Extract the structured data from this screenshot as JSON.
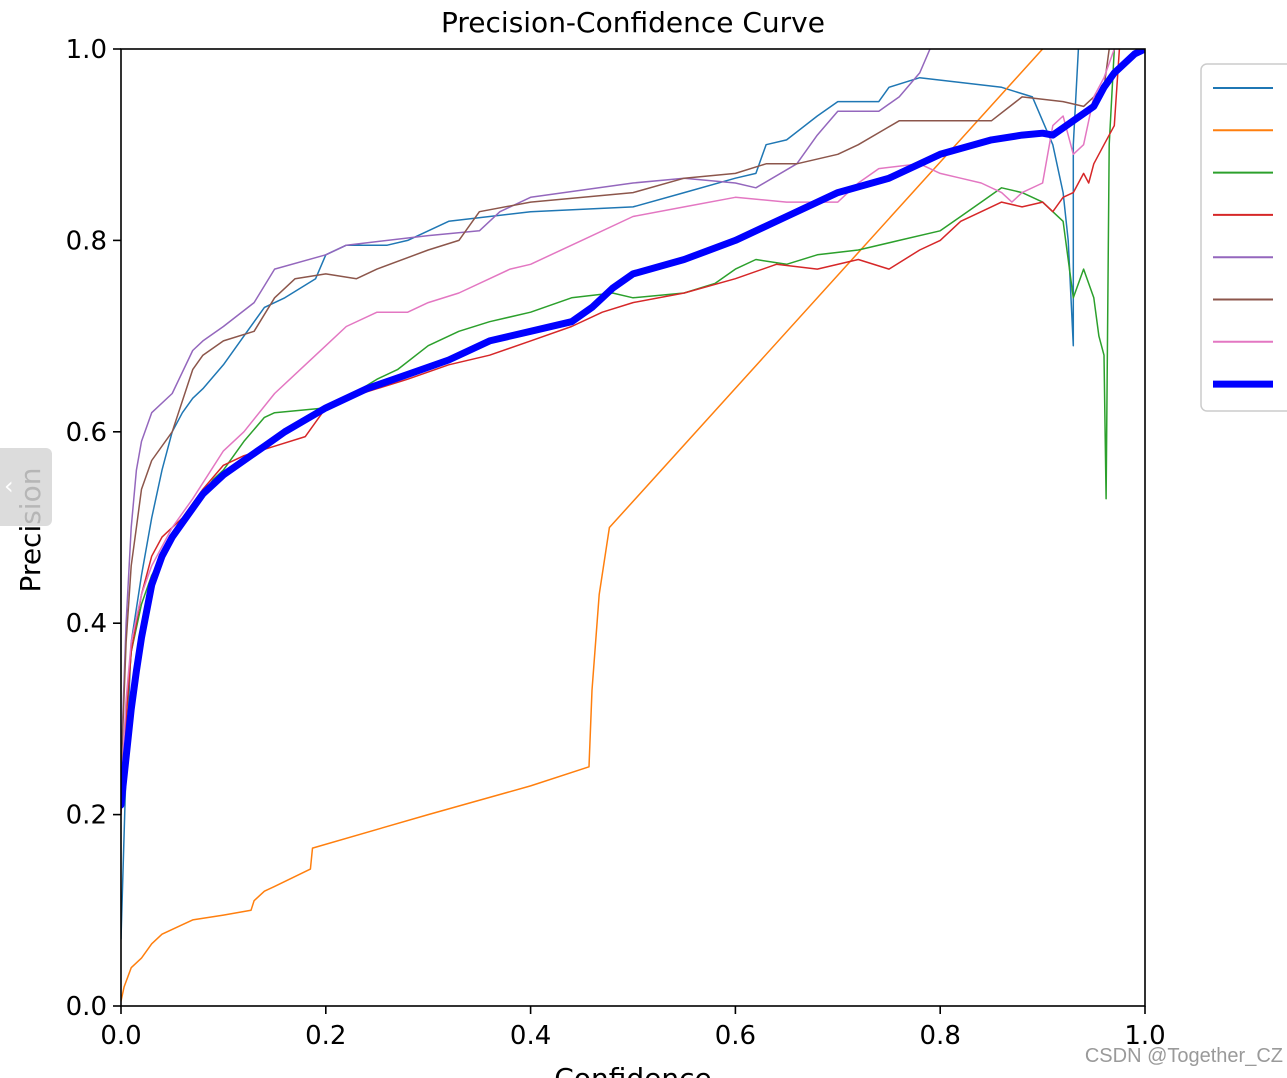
{
  "watermark": "CSDN @Together_CZ",
  "side_tab": {
    "icon": "chevron-left-icon"
  },
  "chart_data": {
    "type": "line",
    "title": "Precision-Confidence Curve",
    "xlabel": "Confidence",
    "ylabel": "Precision",
    "xlim": [
      0,
      1
    ],
    "ylim": [
      0,
      1
    ],
    "xticks": [
      "0.0",
      "0.2",
      "0.4",
      "0.6",
      "0.8",
      "1.0"
    ],
    "yticks": [
      "0.0",
      "0.2",
      "0.4",
      "0.6",
      "0.8",
      "1.0"
    ],
    "grid": false,
    "legend_position": "right-outside",
    "series": [
      {
        "name": "",
        "color": "#1f77b4",
        "width": 1.5,
        "points": [
          [
            0,
            0.07
          ],
          [
            0.005,
            0.25
          ],
          [
            0.01,
            0.38
          ],
          [
            0.02,
            0.45
          ],
          [
            0.03,
            0.51
          ],
          [
            0.04,
            0.56
          ],
          [
            0.05,
            0.6
          ],
          [
            0.06,
            0.62
          ],
          [
            0.07,
            0.635
          ],
          [
            0.08,
            0.645
          ],
          [
            0.1,
            0.67
          ],
          [
            0.12,
            0.7
          ],
          [
            0.14,
            0.73
          ],
          [
            0.16,
            0.74
          ],
          [
            0.19,
            0.76
          ],
          [
            0.2,
            0.785
          ],
          [
            0.22,
            0.795
          ],
          [
            0.26,
            0.795
          ],
          [
            0.28,
            0.8
          ],
          [
            0.32,
            0.82
          ],
          [
            0.4,
            0.83
          ],
          [
            0.5,
            0.835
          ],
          [
            0.55,
            0.85
          ],
          [
            0.6,
            0.865
          ],
          [
            0.62,
            0.87
          ],
          [
            0.63,
            0.9
          ],
          [
            0.65,
            0.905
          ],
          [
            0.68,
            0.93
          ],
          [
            0.7,
            0.945
          ],
          [
            0.74,
            0.945
          ],
          [
            0.75,
            0.96
          ],
          [
            0.78,
            0.97
          ],
          [
            0.82,
            0.965
          ],
          [
            0.86,
            0.96
          ],
          [
            0.89,
            0.95
          ],
          [
            0.91,
            0.9
          ],
          [
            0.92,
            0.85
          ],
          [
            0.925,
            0.8
          ],
          [
            0.93,
            0.69
          ],
          [
            0.93,
            0.9
          ],
          [
            0.935,
            1.0
          ]
        ]
      },
      {
        "name": "",
        "color": "#ff7f0e",
        "width": 1.5,
        "points": [
          [
            0,
            0.005
          ],
          [
            0.003,
            0.02
          ],
          [
            0.01,
            0.04
          ],
          [
            0.02,
            0.05
          ],
          [
            0.03,
            0.065
          ],
          [
            0.04,
            0.075
          ],
          [
            0.06,
            0.085
          ],
          [
            0.07,
            0.09
          ],
          [
            0.1,
            0.095
          ],
          [
            0.127,
            0.1
          ],
          [
            0.13,
            0.11
          ],
          [
            0.14,
            0.12
          ],
          [
            0.15,
            0.125
          ],
          [
            0.185,
            0.143
          ],
          [
            0.187,
            0.165
          ],
          [
            0.3,
            0.2
          ],
          [
            0.4,
            0.23
          ],
          [
            0.457,
            0.25
          ],
          [
            0.46,
            0.33
          ],
          [
            0.467,
            0.43
          ],
          [
            0.477,
            0.5
          ],
          [
            0.9,
            1.0
          ]
        ]
      },
      {
        "name": "",
        "color": "#2ca02c",
        "width": 1.5,
        "points": [
          [
            0,
            0.22
          ],
          [
            0.005,
            0.3
          ],
          [
            0.01,
            0.37
          ],
          [
            0.02,
            0.42
          ],
          [
            0.03,
            0.45
          ],
          [
            0.04,
            0.47
          ],
          [
            0.05,
            0.49
          ],
          [
            0.07,
            0.52
          ],
          [
            0.09,
            0.55
          ],
          [
            0.1,
            0.56
          ],
          [
            0.12,
            0.59
          ],
          [
            0.14,
            0.615
          ],
          [
            0.15,
            0.62
          ],
          [
            0.2,
            0.625
          ],
          [
            0.22,
            0.635
          ],
          [
            0.25,
            0.655
          ],
          [
            0.27,
            0.665
          ],
          [
            0.3,
            0.69
          ],
          [
            0.33,
            0.705
          ],
          [
            0.36,
            0.715
          ],
          [
            0.4,
            0.725
          ],
          [
            0.44,
            0.74
          ],
          [
            0.48,
            0.745
          ],
          [
            0.5,
            0.74
          ],
          [
            0.55,
            0.745
          ],
          [
            0.58,
            0.755
          ],
          [
            0.6,
            0.77
          ],
          [
            0.62,
            0.78
          ],
          [
            0.65,
            0.775
          ],
          [
            0.68,
            0.785
          ],
          [
            0.72,
            0.79
          ],
          [
            0.76,
            0.8
          ],
          [
            0.8,
            0.81
          ],
          [
            0.82,
            0.825
          ],
          [
            0.84,
            0.84
          ],
          [
            0.86,
            0.855
          ],
          [
            0.88,
            0.85
          ],
          [
            0.9,
            0.84
          ],
          [
            0.91,
            0.83
          ],
          [
            0.92,
            0.82
          ],
          [
            0.93,
            0.74
          ],
          [
            0.94,
            0.77
          ],
          [
            0.95,
            0.74
          ],
          [
            0.955,
            0.7
          ],
          [
            0.96,
            0.68
          ],
          [
            0.962,
            0.53
          ],
          [
            0.965,
            0.9
          ],
          [
            0.97,
            1.0
          ]
        ]
      },
      {
        "name": "",
        "color": "#d62728",
        "width": 1.5,
        "points": [
          [
            0,
            0.2
          ],
          [
            0.005,
            0.3
          ],
          [
            0.01,
            0.37
          ],
          [
            0.02,
            0.43
          ],
          [
            0.03,
            0.47
          ],
          [
            0.04,
            0.49
          ],
          [
            0.06,
            0.51
          ],
          [
            0.08,
            0.54
          ],
          [
            0.1,
            0.565
          ],
          [
            0.12,
            0.575
          ],
          [
            0.15,
            0.585
          ],
          [
            0.18,
            0.595
          ],
          [
            0.2,
            0.625
          ],
          [
            0.22,
            0.635
          ],
          [
            0.25,
            0.645
          ],
          [
            0.28,
            0.655
          ],
          [
            0.32,
            0.67
          ],
          [
            0.36,
            0.68
          ],
          [
            0.4,
            0.695
          ],
          [
            0.44,
            0.71
          ],
          [
            0.47,
            0.725
          ],
          [
            0.5,
            0.735
          ],
          [
            0.55,
            0.745
          ],
          [
            0.6,
            0.76
          ],
          [
            0.64,
            0.775
          ],
          [
            0.68,
            0.77
          ],
          [
            0.72,
            0.78
          ],
          [
            0.75,
            0.77
          ],
          [
            0.78,
            0.79
          ],
          [
            0.8,
            0.8
          ],
          [
            0.82,
            0.82
          ],
          [
            0.84,
            0.83
          ],
          [
            0.86,
            0.84
          ],
          [
            0.88,
            0.835
          ],
          [
            0.9,
            0.84
          ],
          [
            0.91,
            0.83
          ],
          [
            0.92,
            0.845
          ],
          [
            0.93,
            0.85
          ],
          [
            0.94,
            0.87
          ],
          [
            0.945,
            0.86
          ],
          [
            0.95,
            0.88
          ],
          [
            0.96,
            0.9
          ],
          [
            0.97,
            0.92
          ],
          [
            0.975,
            1.0
          ]
        ]
      },
      {
        "name": "",
        "color": "#9467bd",
        "width": 1.5,
        "points": [
          [
            0,
            0.25
          ],
          [
            0.005,
            0.4
          ],
          [
            0.01,
            0.5
          ],
          [
            0.015,
            0.56
          ],
          [
            0.02,
            0.59
          ],
          [
            0.03,
            0.62
          ],
          [
            0.05,
            0.64
          ],
          [
            0.07,
            0.685
          ],
          [
            0.08,
            0.695
          ],
          [
            0.1,
            0.71
          ],
          [
            0.13,
            0.735
          ],
          [
            0.15,
            0.77
          ],
          [
            0.2,
            0.785
          ],
          [
            0.22,
            0.795
          ],
          [
            0.3,
            0.805
          ],
          [
            0.35,
            0.81
          ],
          [
            0.37,
            0.83
          ],
          [
            0.4,
            0.845
          ],
          [
            0.5,
            0.86
          ],
          [
            0.55,
            0.865
          ],
          [
            0.6,
            0.86
          ],
          [
            0.62,
            0.855
          ],
          [
            0.66,
            0.88
          ],
          [
            0.68,
            0.91
          ],
          [
            0.7,
            0.935
          ],
          [
            0.74,
            0.935
          ],
          [
            0.76,
            0.95
          ],
          [
            0.78,
            0.975
          ],
          [
            0.79,
            1.0
          ]
        ]
      },
      {
        "name": "",
        "color": "#8c564b",
        "width": 1.5,
        "points": [
          [
            0,
            0.24
          ],
          [
            0.005,
            0.38
          ],
          [
            0.01,
            0.46
          ],
          [
            0.015,
            0.5
          ],
          [
            0.02,
            0.54
          ],
          [
            0.03,
            0.57
          ],
          [
            0.05,
            0.6
          ],
          [
            0.07,
            0.665
          ],
          [
            0.08,
            0.68
          ],
          [
            0.1,
            0.695
          ],
          [
            0.13,
            0.705
          ],
          [
            0.15,
            0.74
          ],
          [
            0.17,
            0.76
          ],
          [
            0.2,
            0.765
          ],
          [
            0.23,
            0.76
          ],
          [
            0.25,
            0.77
          ],
          [
            0.3,
            0.79
          ],
          [
            0.33,
            0.8
          ],
          [
            0.35,
            0.83
          ],
          [
            0.4,
            0.84
          ],
          [
            0.5,
            0.85
          ],
          [
            0.55,
            0.865
          ],
          [
            0.6,
            0.87
          ],
          [
            0.63,
            0.88
          ],
          [
            0.66,
            0.88
          ],
          [
            0.7,
            0.89
          ],
          [
            0.72,
            0.9
          ],
          [
            0.76,
            0.925
          ],
          [
            0.8,
            0.925
          ],
          [
            0.85,
            0.925
          ],
          [
            0.88,
            0.95
          ],
          [
            0.92,
            0.945
          ],
          [
            0.94,
            0.94
          ],
          [
            0.95,
            0.95
          ],
          [
            0.96,
            0.96
          ],
          [
            0.965,
            1.0
          ]
        ]
      },
      {
        "name": "",
        "color": "#e377c2",
        "width": 1.5,
        "points": [
          [
            0,
            0.22
          ],
          [
            0.005,
            0.32
          ],
          [
            0.01,
            0.38
          ],
          [
            0.02,
            0.43
          ],
          [
            0.03,
            0.46
          ],
          [
            0.05,
            0.5
          ],
          [
            0.07,
            0.53
          ],
          [
            0.1,
            0.58
          ],
          [
            0.12,
            0.6
          ],
          [
            0.15,
            0.64
          ],
          [
            0.18,
            0.67
          ],
          [
            0.2,
            0.69
          ],
          [
            0.22,
            0.71
          ],
          [
            0.25,
            0.725
          ],
          [
            0.28,
            0.725
          ],
          [
            0.3,
            0.735
          ],
          [
            0.33,
            0.745
          ],
          [
            0.36,
            0.76
          ],
          [
            0.38,
            0.77
          ],
          [
            0.4,
            0.775
          ],
          [
            0.45,
            0.8
          ],
          [
            0.5,
            0.825
          ],
          [
            0.55,
            0.835
          ],
          [
            0.6,
            0.845
          ],
          [
            0.65,
            0.84
          ],
          [
            0.7,
            0.84
          ],
          [
            0.72,
            0.86
          ],
          [
            0.74,
            0.875
          ],
          [
            0.78,
            0.88
          ],
          [
            0.8,
            0.87
          ],
          [
            0.82,
            0.865
          ],
          [
            0.84,
            0.86
          ],
          [
            0.86,
            0.85
          ],
          [
            0.87,
            0.84
          ],
          [
            0.88,
            0.85
          ],
          [
            0.9,
            0.86
          ],
          [
            0.91,
            0.92
          ],
          [
            0.92,
            0.93
          ],
          [
            0.93,
            0.89
          ],
          [
            0.94,
            0.9
          ],
          [
            0.95,
            0.95
          ],
          [
            0.96,
            0.97
          ],
          [
            0.97,
            1.0
          ]
        ]
      },
      {
        "name": "",
        "color": "#0000ff",
        "width": 7,
        "points": [
          [
            0,
            0.21
          ],
          [
            0.005,
            0.26
          ],
          [
            0.01,
            0.31
          ],
          [
            0.015,
            0.35
          ],
          [
            0.02,
            0.385
          ],
          [
            0.03,
            0.44
          ],
          [
            0.04,
            0.47
          ],
          [
            0.05,
            0.49
          ],
          [
            0.06,
            0.505
          ],
          [
            0.08,
            0.535
          ],
          [
            0.1,
            0.555
          ],
          [
            0.12,
            0.57
          ],
          [
            0.14,
            0.585
          ],
          [
            0.16,
            0.6
          ],
          [
            0.2,
            0.625
          ],
          [
            0.24,
            0.645
          ],
          [
            0.28,
            0.66
          ],
          [
            0.32,
            0.675
          ],
          [
            0.36,
            0.695
          ],
          [
            0.4,
            0.705
          ],
          [
            0.44,
            0.715
          ],
          [
            0.46,
            0.73
          ],
          [
            0.48,
            0.75
          ],
          [
            0.5,
            0.765
          ],
          [
            0.55,
            0.78
          ],
          [
            0.6,
            0.8
          ],
          [
            0.65,
            0.825
          ],
          [
            0.7,
            0.85
          ],
          [
            0.75,
            0.865
          ],
          [
            0.8,
            0.89
          ],
          [
            0.85,
            0.905
          ],
          [
            0.88,
            0.91
          ],
          [
            0.9,
            0.912
          ],
          [
            0.91,
            0.91
          ],
          [
            0.93,
            0.925
          ],
          [
            0.95,
            0.94
          ],
          [
            0.96,
            0.96
          ],
          [
            0.97,
            0.975
          ],
          [
            0.98,
            0.985
          ],
          [
            0.99,
            0.995
          ],
          [
            1.0,
            1.0
          ]
        ]
      }
    ]
  }
}
